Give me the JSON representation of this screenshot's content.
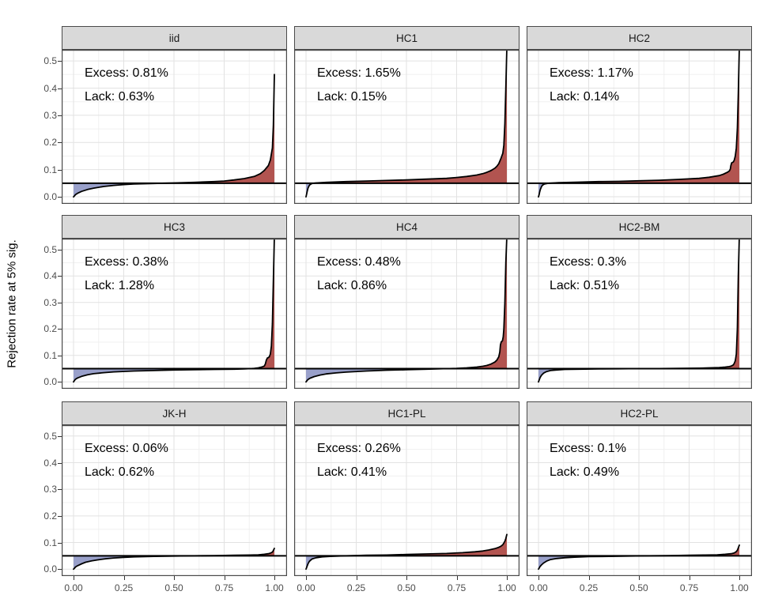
{
  "colors": {
    "excess_fill": "#b25450",
    "lack_fill": "#99a0ca",
    "curve_line": "#000000",
    "reference_line": "#000000",
    "strip_bg": "#d9d9d9",
    "panel_border": "#4a4a4a",
    "grid_major": "#e2e2e2",
    "grid_minor": "#f0f0f0",
    "tick_text": "#4d4d4d"
  },
  "chart_data": {
    "type": "area",
    "layout": "3x3-facet-grid",
    "title": "",
    "xlabel": "",
    "ylabel": "Rejection rate at 5% sig.",
    "x_range": [
      0,
      1
    ],
    "y_range_shown": [
      0,
      0.5
    ],
    "reference_line_y": 0.05,
    "grid": "major and minor, light gray on white",
    "x_ticks": [
      0,
      0.25,
      0.5,
      0.75,
      1
    ],
    "x_tick_labels": [
      "0.00",
      "0.25",
      "0.50",
      "0.75",
      "1.00"
    ],
    "y_ticks": [
      0,
      0.1,
      0.2,
      0.3,
      0.4,
      0.5
    ],
    "y_tick_labels": [
      "0.0",
      "0.1",
      "0.2",
      "0.3",
      "0.4",
      "0.5"
    ],
    "legend": "none",
    "facets": [
      {
        "label": "iid",
        "excess_label": "Excess: 0.81%",
        "lack_label": "Lack: 0.63%",
        "excess_pct": 0.81,
        "lack_pct": 0.63,
        "curve": [
          [
            0,
            0
          ],
          [
            0.01,
            0.008
          ],
          [
            0.02,
            0.013
          ],
          [
            0.04,
            0.02
          ],
          [
            0.07,
            0.027
          ],
          [
            0.1,
            0.032
          ],
          [
            0.15,
            0.038
          ],
          [
            0.2,
            0.042
          ],
          [
            0.25,
            0.045
          ],
          [
            0.3,
            0.047
          ],
          [
            0.4,
            0.049
          ],
          [
            0.5,
            0.051
          ],
          [
            0.6,
            0.053
          ],
          [
            0.7,
            0.056
          ],
          [
            0.75,
            0.058
          ],
          [
            0.8,
            0.062
          ],
          [
            0.85,
            0.067
          ],
          [
            0.9,
            0.075
          ],
          [
            0.93,
            0.085
          ],
          [
            0.95,
            0.097
          ],
          [
            0.97,
            0.115
          ],
          [
            0.98,
            0.135
          ],
          [
            0.99,
            0.18
          ],
          [
            0.995,
            0.26
          ],
          [
            1,
            0.45
          ]
        ]
      },
      {
        "label": "HC1",
        "excess_label": "Excess: 1.65%",
        "lack_label": "Lack: 0.15%",
        "excess_pct": 1.65,
        "lack_pct": 0.15,
        "curve": [
          [
            0,
            0
          ],
          [
            0.003,
            0.01
          ],
          [
            0.006,
            0.02
          ],
          [
            0.01,
            0.032
          ],
          [
            0.015,
            0.04
          ],
          [
            0.02,
            0.045
          ],
          [
            0.03,
            0.049
          ],
          [
            0.05,
            0.051
          ],
          [
            0.1,
            0.053
          ],
          [
            0.2,
            0.056
          ],
          [
            0.3,
            0.058
          ],
          [
            0.4,
            0.06
          ],
          [
            0.5,
            0.062
          ],
          [
            0.6,
            0.065
          ],
          [
            0.7,
            0.068
          ],
          [
            0.75,
            0.071
          ],
          [
            0.8,
            0.075
          ],
          [
            0.85,
            0.08
          ],
          [
            0.88,
            0.085
          ],
          [
            0.9,
            0.09
          ],
          [
            0.92,
            0.096
          ],
          [
            0.94,
            0.105
          ],
          [
            0.95,
            0.112
          ],
          [
            0.96,
            0.122
          ],
          [
            0.97,
            0.14
          ],
          [
            0.975,
            0.15
          ],
          [
            0.98,
            0.16
          ],
          [
            0.985,
            0.19
          ],
          [
            0.99,
            0.27
          ],
          [
            0.995,
            0.4
          ],
          [
            1,
            0.55
          ]
        ]
      },
      {
        "label": "HC2",
        "excess_label": "Excess: 1.17%",
        "lack_label": "Lack: 0.14%",
        "excess_pct": 1.17,
        "lack_pct": 0.14,
        "curve": [
          [
            0,
            0
          ],
          [
            0.003,
            0.008
          ],
          [
            0.006,
            0.018
          ],
          [
            0.01,
            0.028
          ],
          [
            0.015,
            0.037
          ],
          [
            0.02,
            0.043
          ],
          [
            0.03,
            0.047
          ],
          [
            0.05,
            0.05
          ],
          [
            0.1,
            0.052
          ],
          [
            0.2,
            0.054
          ],
          [
            0.3,
            0.056
          ],
          [
            0.4,
            0.057
          ],
          [
            0.5,
            0.059
          ],
          [
            0.6,
            0.061
          ],
          [
            0.7,
            0.064
          ],
          [
            0.8,
            0.068
          ],
          [
            0.85,
            0.072
          ],
          [
            0.9,
            0.078
          ],
          [
            0.92,
            0.083
          ],
          [
            0.94,
            0.09
          ],
          [
            0.95,
            0.095
          ],
          [
            0.955,
            0.102
          ],
          [
            0.958,
            0.115
          ],
          [
            0.962,
            0.125
          ],
          [
            0.97,
            0.128
          ],
          [
            0.975,
            0.135
          ],
          [
            0.98,
            0.15
          ],
          [
            0.985,
            0.18
          ],
          [
            0.99,
            0.25
          ],
          [
            0.995,
            0.38
          ],
          [
            1,
            0.55
          ]
        ]
      },
      {
        "label": "HC3",
        "excess_label": "Excess: 0.38%",
        "lack_label": "Lack: 1.28%",
        "excess_pct": 0.38,
        "lack_pct": 1.28,
        "curve": [
          [
            0,
            0
          ],
          [
            0.005,
            0.006
          ],
          [
            0.01,
            0.01
          ],
          [
            0.02,
            0.015
          ],
          [
            0.04,
            0.021
          ],
          [
            0.07,
            0.027
          ],
          [
            0.1,
            0.031
          ],
          [
            0.15,
            0.035
          ],
          [
            0.2,
            0.038
          ],
          [
            0.3,
            0.041
          ],
          [
            0.4,
            0.043
          ],
          [
            0.5,
            0.045
          ],
          [
            0.6,
            0.046
          ],
          [
            0.7,
            0.047
          ],
          [
            0.8,
            0.048
          ],
          [
            0.85,
            0.049
          ],
          [
            0.88,
            0.05
          ],
          [
            0.9,
            0.051
          ],
          [
            0.92,
            0.053
          ],
          [
            0.94,
            0.057
          ],
          [
            0.95,
            0.06
          ],
          [
            0.955,
            0.068
          ],
          [
            0.96,
            0.082
          ],
          [
            0.965,
            0.09
          ],
          [
            0.97,
            0.092
          ],
          [
            0.975,
            0.095
          ],
          [
            0.98,
            0.105
          ],
          [
            0.985,
            0.135
          ],
          [
            0.99,
            0.22
          ],
          [
            0.995,
            0.38
          ],
          [
            1,
            0.55
          ]
        ]
      },
      {
        "label": "HC4",
        "excess_label": "Excess: 0.48%",
        "lack_label": "Lack: 0.86%",
        "excess_pct": 0.48,
        "lack_pct": 0.86,
        "curve": [
          [
            0,
            0
          ],
          [
            0.005,
            0.005
          ],
          [
            0.01,
            0.009
          ],
          [
            0.02,
            0.014
          ],
          [
            0.04,
            0.02
          ],
          [
            0.07,
            0.026
          ],
          [
            0.1,
            0.03
          ],
          [
            0.15,
            0.034
          ],
          [
            0.2,
            0.037
          ],
          [
            0.3,
            0.041
          ],
          [
            0.4,
            0.044
          ],
          [
            0.5,
            0.046
          ],
          [
            0.6,
            0.048
          ],
          [
            0.7,
            0.05
          ],
          [
            0.75,
            0.051
          ],
          [
            0.8,
            0.053
          ],
          [
            0.85,
            0.056
          ],
          [
            0.88,
            0.059
          ],
          [
            0.9,
            0.062
          ],
          [
            0.92,
            0.067
          ],
          [
            0.94,
            0.075
          ],
          [
            0.95,
            0.082
          ],
          [
            0.96,
            0.095
          ],
          [
            0.965,
            0.113
          ],
          [
            0.968,
            0.14
          ],
          [
            0.972,
            0.151
          ],
          [
            0.978,
            0.155
          ],
          [
            0.982,
            0.17
          ],
          [
            0.985,
            0.2
          ],
          [
            0.99,
            0.3
          ],
          [
            0.995,
            0.45
          ],
          [
            1,
            0.55
          ]
        ]
      },
      {
        "label": "HC2-BM",
        "excess_label": "Excess: 0.3%",
        "lack_label": "Lack: 0.51%",
        "excess_pct": 0.3,
        "lack_pct": 0.51,
        "curve": [
          [
            0,
            0
          ],
          [
            0.004,
            0.008
          ],
          [
            0.008,
            0.016
          ],
          [
            0.015,
            0.025
          ],
          [
            0.025,
            0.033
          ],
          [
            0.04,
            0.039
          ],
          [
            0.06,
            0.043
          ],
          [
            0.09,
            0.045
          ],
          [
            0.13,
            0.047
          ],
          [
            0.2,
            0.048
          ],
          [
            0.3,
            0.049
          ],
          [
            0.4,
            0.0495
          ],
          [
            0.5,
            0.05
          ],
          [
            0.6,
            0.0505
          ],
          [
            0.7,
            0.051
          ],
          [
            0.8,
            0.052
          ],
          [
            0.85,
            0.053
          ],
          [
            0.9,
            0.054
          ],
          [
            0.93,
            0.056
          ],
          [
            0.95,
            0.058
          ],
          [
            0.96,
            0.06
          ],
          [
            0.97,
            0.064
          ],
          [
            0.975,
            0.07
          ],
          [
            0.98,
            0.08
          ],
          [
            0.985,
            0.105
          ],
          [
            0.99,
            0.2
          ],
          [
            0.995,
            0.4
          ],
          [
            1,
            0.55
          ]
        ]
      },
      {
        "label": "JK-H",
        "excess_label": "Excess: 0.06%",
        "lack_label": "Lack: 0.62%",
        "excess_pct": 0.06,
        "lack_pct": 0.62,
        "curve": [
          [
            0,
            0
          ],
          [
            0.005,
            0.004
          ],
          [
            0.01,
            0.008
          ],
          [
            0.02,
            0.013
          ],
          [
            0.04,
            0.02
          ],
          [
            0.06,
            0.026
          ],
          [
            0.09,
            0.031
          ],
          [
            0.12,
            0.035
          ],
          [
            0.16,
            0.039
          ],
          [
            0.2,
            0.042
          ],
          [
            0.25,
            0.044
          ],
          [
            0.3,
            0.046
          ],
          [
            0.4,
            0.048
          ],
          [
            0.5,
            0.049
          ],
          [
            0.6,
            0.05
          ],
          [
            0.7,
            0.051
          ],
          [
            0.8,
            0.052
          ],
          [
            0.88,
            0.053
          ],
          [
            0.92,
            0.054
          ],
          [
            0.95,
            0.056
          ],
          [
            0.97,
            0.058
          ],
          [
            0.98,
            0.06
          ],
          [
            0.99,
            0.064
          ],
          [
            0.995,
            0.07
          ],
          [
            1,
            0.078
          ]
        ]
      },
      {
        "label": "HC1-PL",
        "excess_label": "Excess: 0.26%",
        "lack_label": "Lack: 0.41%",
        "excess_pct": 0.26,
        "lack_pct": 0.41,
        "curve": [
          [
            0,
            0
          ],
          [
            0.003,
            0.006
          ],
          [
            0.006,
            0.012
          ],
          [
            0.01,
            0.02
          ],
          [
            0.015,
            0.027
          ],
          [
            0.02,
            0.032
          ],
          [
            0.03,
            0.038
          ],
          [
            0.05,
            0.043
          ],
          [
            0.08,
            0.046
          ],
          [
            0.12,
            0.048
          ],
          [
            0.2,
            0.05
          ],
          [
            0.3,
            0.052
          ],
          [
            0.4,
            0.053
          ],
          [
            0.5,
            0.055
          ],
          [
            0.6,
            0.057
          ],
          [
            0.7,
            0.059
          ],
          [
            0.78,
            0.062
          ],
          [
            0.84,
            0.065
          ],
          [
            0.88,
            0.068
          ],
          [
            0.91,
            0.072
          ],
          [
            0.94,
            0.077
          ],
          [
            0.96,
            0.082
          ],
          [
            0.97,
            0.086
          ],
          [
            0.98,
            0.092
          ],
          [
            0.985,
            0.098
          ],
          [
            0.99,
            0.105
          ],
          [
            0.995,
            0.115
          ],
          [
            1,
            0.13
          ]
        ]
      },
      {
        "label": "HC2-PL",
        "excess_label": "Excess: 0.1%",
        "lack_label": "Lack: 0.49%",
        "excess_pct": 0.1,
        "lack_pct": 0.49,
        "curve": [
          [
            0,
            0
          ],
          [
            0.004,
            0.005
          ],
          [
            0.008,
            0.01
          ],
          [
            0.015,
            0.016
          ],
          [
            0.025,
            0.023
          ],
          [
            0.04,
            0.03
          ],
          [
            0.06,
            0.036
          ],
          [
            0.09,
            0.04
          ],
          [
            0.13,
            0.043
          ],
          [
            0.18,
            0.045
          ],
          [
            0.25,
            0.047
          ],
          [
            0.35,
            0.048
          ],
          [
            0.45,
            0.049
          ],
          [
            0.55,
            0.05
          ],
          [
            0.65,
            0.051
          ],
          [
            0.75,
            0.052
          ],
          [
            0.83,
            0.053
          ],
          [
            0.89,
            0.054
          ],
          [
            0.93,
            0.056
          ],
          [
            0.96,
            0.058
          ],
          [
            0.975,
            0.061
          ],
          [
            0.985,
            0.066
          ],
          [
            0.99,
            0.071
          ],
          [
            0.995,
            0.08
          ],
          [
            1,
            0.09
          ]
        ]
      }
    ]
  }
}
